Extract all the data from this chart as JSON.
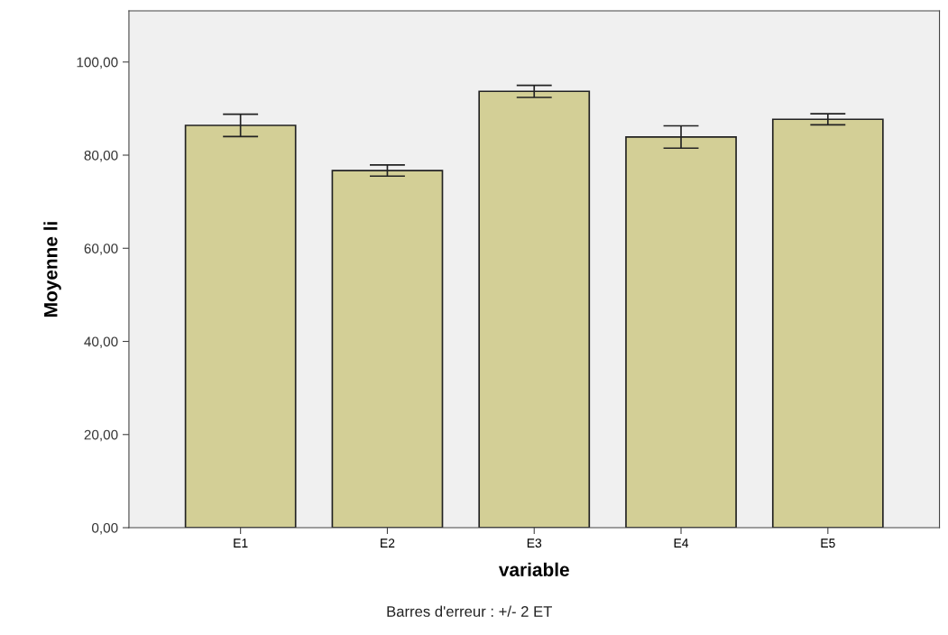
{
  "chart_data": {
    "type": "bar",
    "xlabel": "variable",
    "ylabel": "Moyenne li",
    "categories": [
      "E1",
      "E2",
      "E3",
      "E4",
      "E5"
    ],
    "values": [
      86.4,
      76.7,
      93.7,
      83.9,
      87.7
    ],
    "errors": [
      2.4,
      1.2,
      1.3,
      2.4,
      1.2
    ],
    "color": "#d3cf96",
    "ylim": [
      0,
      111
    ],
    "yticks": [
      {
        "value": 0,
        "label": "0,00"
      },
      {
        "value": 20,
        "label": "20,00"
      },
      {
        "value": 40,
        "label": "40,00"
      },
      {
        "value": 60,
        "label": "60,00"
      },
      {
        "value": 80,
        "label": "80,00"
      },
      {
        "value": 100,
        "label": "100,00"
      }
    ],
    "grid": false,
    "annotations": [
      "Barres d'erreur : +/- 2 ET"
    ]
  }
}
